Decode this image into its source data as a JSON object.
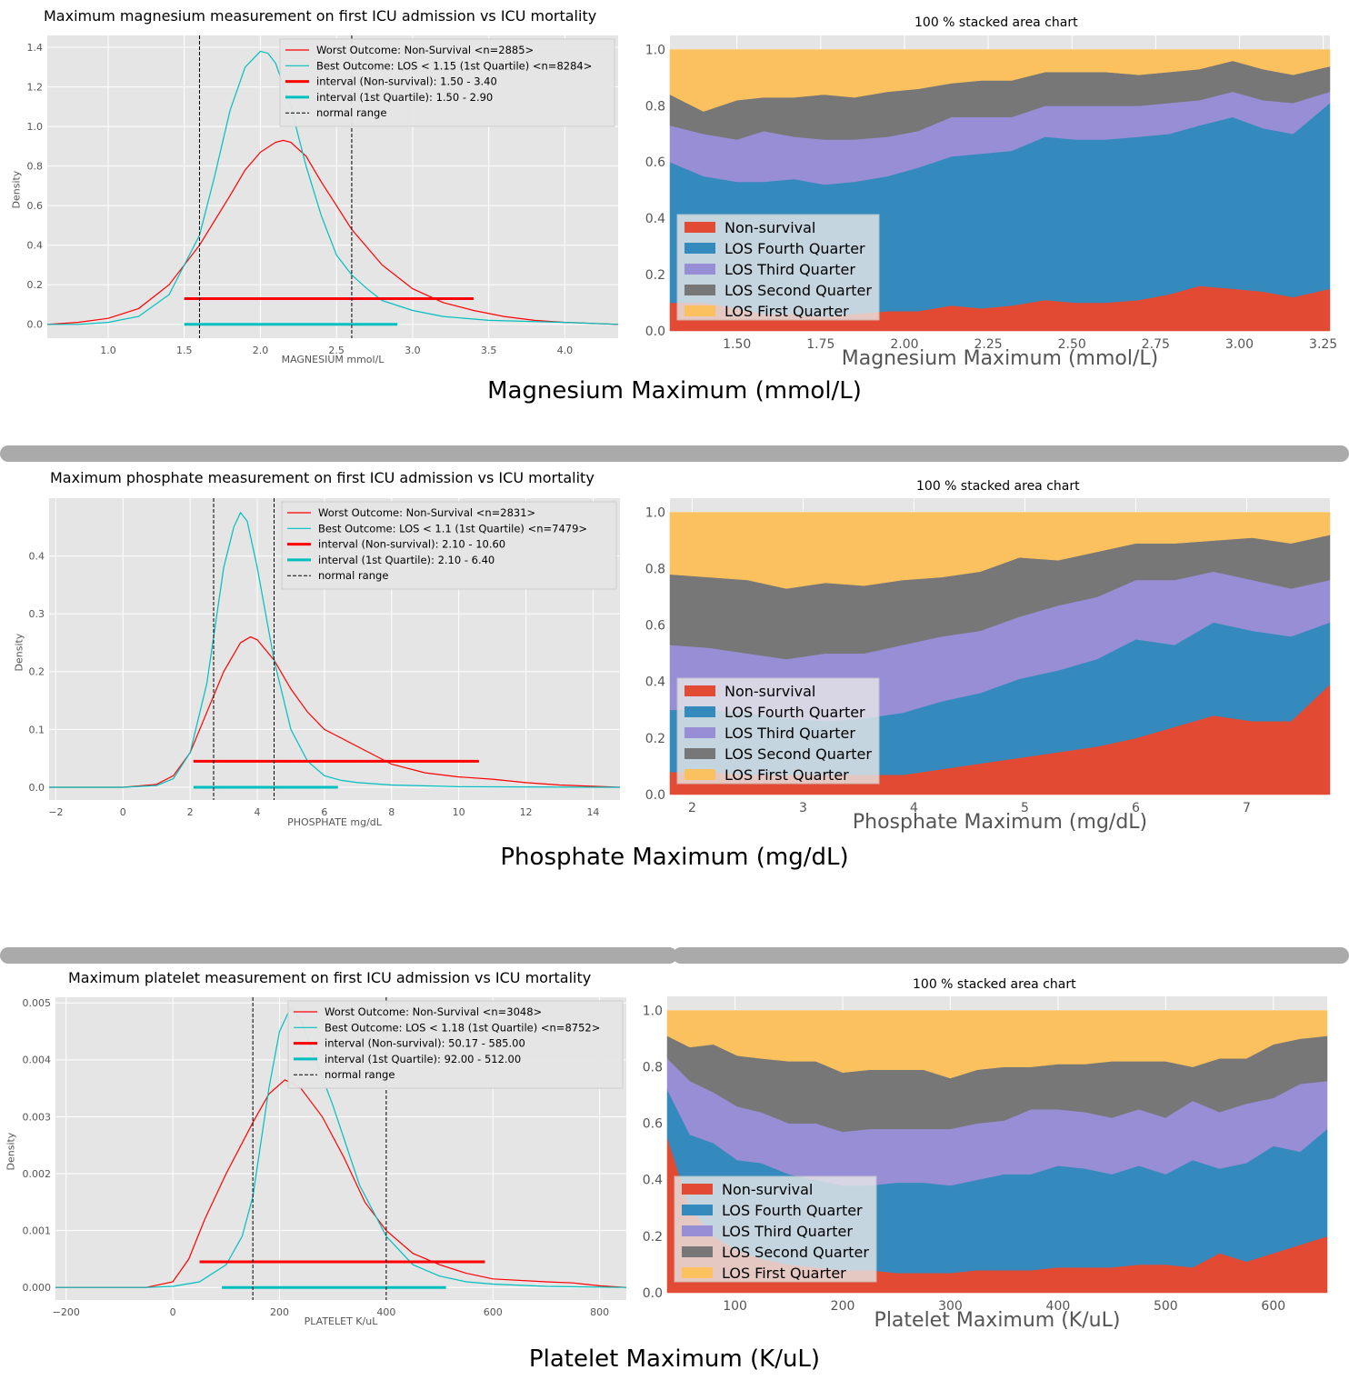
{
  "colors": {
    "red": "#e24a33",
    "blue": "#348abd",
    "purple": "#988ed5",
    "gray": "#777777",
    "yellow": "#fbc15e",
    "kde_red": "#ff0000",
    "kde_cyan": "#00bfbf",
    "panel_bg": "#e5e5e5",
    "grid": "#ffffff",
    "divider": "#aaaaaa"
  },
  "sections": {
    "magnesium": {
      "caption": "Magnesium Maximum (mmol/L)"
    },
    "phosphate": {
      "caption": "Phosphate Maximum (mg/dL)"
    },
    "platelet": {
      "caption": "Platelet Maximum (K/uL)"
    }
  },
  "chart_data": [
    {
      "id": "mg_kde",
      "type": "line",
      "title": "Maximum magnesium measurement on first ICU admission vs ICU mortality",
      "xlabel": "MAGNESIUM mmol/L",
      "ylabel": "Density",
      "xlim": [
        0.6,
        4.35
      ],
      "ylim": [
        -0.07,
        1.46
      ],
      "xticks": [
        1.0,
        1.5,
        2.0,
        2.5,
        3.0,
        3.5,
        4.0
      ],
      "xtick_labels": [
        "1.0",
        "1.5",
        "2.0",
        "2.5",
        "3.0",
        "3.5",
        "4.0"
      ],
      "yticks": [
        0.0,
        0.2,
        0.4,
        0.6,
        0.8,
        1.0,
        1.2,
        1.4
      ],
      "ytick_labels": [
        "0.0",
        "0.2",
        "0.4",
        "0.6",
        "0.8",
        "1.0",
        "1.2",
        "1.4"
      ],
      "legend": [
        "Worst Outcome: Non-Survival <n=2885>",
        "Best Outcome: LOS < 1.15 (1st Quartile) <n=8284>",
        "interval (Non-survival): 1.50 - 3.40",
        "interval (1st Quartile): 1.50 - 2.90",
        "normal range"
      ],
      "series": [
        {
          "name": "Worst Outcome: Non-Survival <n=2885>",
          "color": "red",
          "x": [
            0.6,
            0.8,
            1.0,
            1.2,
            1.4,
            1.6,
            1.8,
            1.9,
            2.0,
            2.1,
            2.15,
            2.2,
            2.3,
            2.4,
            2.5,
            2.6,
            2.8,
            3.0,
            3.2,
            3.4,
            3.6,
            3.8,
            4.0,
            4.35
          ],
          "y": [
            0.0,
            0.01,
            0.03,
            0.08,
            0.2,
            0.4,
            0.65,
            0.78,
            0.87,
            0.92,
            0.93,
            0.92,
            0.85,
            0.72,
            0.6,
            0.48,
            0.3,
            0.18,
            0.11,
            0.07,
            0.04,
            0.02,
            0.01,
            0.0
          ]
        },
        {
          "name": "Best Outcome: LOS < 1.15 (1st Quartile) <n=8284>",
          "color": "cyan",
          "x": [
            0.6,
            0.8,
            1.0,
            1.2,
            1.4,
            1.6,
            1.7,
            1.8,
            1.9,
            2.0,
            2.05,
            2.1,
            2.2,
            2.3,
            2.4,
            2.5,
            2.6,
            2.7,
            2.8,
            3.0,
            3.2,
            3.5,
            4.0,
            4.35
          ],
          "y": [
            0.0,
            0.0,
            0.01,
            0.04,
            0.15,
            0.45,
            0.75,
            1.08,
            1.3,
            1.38,
            1.37,
            1.32,
            1.1,
            0.8,
            0.55,
            0.35,
            0.25,
            0.18,
            0.12,
            0.07,
            0.04,
            0.02,
            0.01,
            0.0
          ]
        }
      ],
      "intervals": [
        {
          "color": "red",
          "x0": 1.5,
          "x1": 3.4,
          "y": 0.13
        },
        {
          "color": "cyan",
          "x0": 1.5,
          "x1": 2.9,
          "y": 0.0
        }
      ],
      "normal_range": [
        1.6,
        2.6
      ]
    },
    {
      "id": "mg_area",
      "type": "area",
      "title": "100 % stacked area chart",
      "xlabel": "Magnesium Maximum (mmol/L)",
      "xlim": [
        1.3,
        3.27
      ],
      "ylim": [
        0.0,
        1.05
      ],
      "xticks": [
        1.5,
        1.75,
        2.0,
        2.25,
        2.5,
        2.75,
        3.0,
        3.25
      ],
      "xtick_labels": [
        "1.50",
        "1.75",
        "2.00",
        "2.25",
        "2.50",
        "2.75",
        "3.00",
        "3.25"
      ],
      "yticks": [
        0.0,
        0.2,
        0.4,
        0.6,
        0.8,
        1.0
      ],
      "ytick_labels": [
        "0.0",
        "0.2",
        "0.4",
        "0.6",
        "0.8",
        "1.0"
      ],
      "legend": [
        "Non-survival",
        "LOS Fourth Quarter",
        "LOS Third Quarter",
        "LOS Second Quarter",
        "LOS First Quarter"
      ],
      "x": [
        1.3,
        1.4,
        1.5,
        1.58,
        1.67,
        1.76,
        1.85,
        1.95,
        2.04,
        2.14,
        2.23,
        2.32,
        2.42,
        2.51,
        2.6,
        2.7,
        2.79,
        2.88,
        2.98,
        3.07,
        3.16,
        3.27
      ],
      "cumulative": [
        [
          0.1,
          0.1,
          0.08,
          0.06,
          0.06,
          0.05,
          0.06,
          0.07,
          0.07,
          0.09,
          0.08,
          0.09,
          0.11,
          0.1,
          0.1,
          0.11,
          0.13,
          0.16,
          0.15,
          0.14,
          0.12,
          0.15
        ],
        [
          0.6,
          0.55,
          0.53,
          0.53,
          0.54,
          0.52,
          0.53,
          0.55,
          0.58,
          0.62,
          0.63,
          0.64,
          0.69,
          0.68,
          0.68,
          0.69,
          0.7,
          0.73,
          0.76,
          0.72,
          0.7,
          0.81
        ],
        [
          0.73,
          0.7,
          0.68,
          0.71,
          0.69,
          0.68,
          0.68,
          0.69,
          0.71,
          0.76,
          0.76,
          0.76,
          0.8,
          0.8,
          0.8,
          0.8,
          0.81,
          0.82,
          0.85,
          0.82,
          0.81,
          0.85
        ],
        [
          0.84,
          0.78,
          0.82,
          0.83,
          0.83,
          0.84,
          0.83,
          0.85,
          0.86,
          0.88,
          0.89,
          0.89,
          0.92,
          0.92,
          0.92,
          0.91,
          0.92,
          0.93,
          0.96,
          0.93,
          0.91,
          0.94
        ],
        [
          1.0,
          1.0,
          1.0,
          1.0,
          1.0,
          1.0,
          1.0,
          1.0,
          1.0,
          1.0,
          1.0,
          1.0,
          1.0,
          1.0,
          1.0,
          1.0,
          1.0,
          1.0,
          1.0,
          1.0,
          1.0,
          1.0
        ]
      ]
    },
    {
      "id": "ph_kde",
      "type": "line",
      "title": "Maximum phosphate measurement on first ICU admission vs ICU mortality",
      "xlabel": "PHOSPHATE mg/dL",
      "ylabel": "Density",
      "xlim": [
        -2.2,
        14.8
      ],
      "ylim": [
        -0.022,
        0.5
      ],
      "xticks": [
        -2,
        0,
        2,
        4,
        6,
        8,
        10,
        12,
        14
      ],
      "xtick_labels": [
        "−2",
        "0",
        "2",
        "4",
        "6",
        "8",
        "10",
        "12",
        "14"
      ],
      "yticks": [
        0.0,
        0.1,
        0.2,
        0.3,
        0.4
      ],
      "ytick_labels": [
        "0.0",
        "0.1",
        "0.2",
        "0.3",
        "0.4"
      ],
      "legend": [
        "Worst Outcome: Non-Survival <n=2831>",
        "Best Outcome: LOS < 1.1 (1st Quartile) <n=7479>",
        "interval (Non-survival): 2.10 - 10.60",
        "interval (1st Quartile): 2.10 - 6.40",
        "normal range"
      ],
      "series": [
        {
          "name": "Worst Outcome: Non-Survival <n=2831>",
          "color": "red",
          "x": [
            -2.2,
            0,
            1,
            1.5,
            2,
            2.5,
            3,
            3.5,
            3.8,
            4,
            4.5,
            5,
            5.5,
            6,
            6.5,
            7,
            8,
            9,
            10,
            11,
            12,
            13,
            14.8
          ],
          "y": [
            0.0,
            0.0,
            0.005,
            0.02,
            0.06,
            0.13,
            0.2,
            0.25,
            0.26,
            0.255,
            0.22,
            0.17,
            0.13,
            0.1,
            0.085,
            0.07,
            0.04,
            0.025,
            0.018,
            0.014,
            0.008,
            0.004,
            0.0
          ]
        },
        {
          "name": "Best Outcome: LOS < 1.1 (1st Quartile) <n=7479>",
          "color": "cyan",
          "x": [
            -2.2,
            0,
            1,
            1.5,
            2,
            2.5,
            3,
            3.3,
            3.5,
            3.7,
            4,
            4.5,
            5,
            5.5,
            6,
            6.5,
            7,
            8,
            10,
            14.8
          ],
          "y": [
            0.0,
            0.0,
            0.003,
            0.015,
            0.06,
            0.18,
            0.38,
            0.45,
            0.475,
            0.46,
            0.38,
            0.22,
            0.1,
            0.045,
            0.02,
            0.012,
            0.008,
            0.004,
            0.001,
            0.0
          ]
        }
      ],
      "intervals": [
        {
          "color": "red",
          "x0": 2.1,
          "x1": 10.6,
          "y": 0.045
        },
        {
          "color": "cyan",
          "x0": 2.1,
          "x1": 6.4,
          "y": 0.0
        }
      ],
      "normal_range": [
        2.7,
        4.5
      ]
    },
    {
      "id": "ph_area",
      "type": "area",
      "title": "100 % stacked area chart",
      "xlabel": "Phosphate Maximum (mg/dL)",
      "xlim": [
        1.8,
        7.75
      ],
      "ylim": [
        0.0,
        1.05
      ],
      "xticks": [
        2,
        3,
        4,
        5,
        6,
        7
      ],
      "xtick_labels": [
        "2",
        "3",
        "4",
        "5",
        "6",
        "7"
      ],
      "yticks": [
        0.0,
        0.2,
        0.4,
        0.6,
        0.8,
        1.0
      ],
      "ytick_labels": [
        "0.0",
        "0.2",
        "0.4",
        "0.6",
        "0.8",
        "1.0"
      ],
      "legend": [
        "Non-survival",
        "LOS Fourth Quarter",
        "LOS Third Quarter",
        "LOS Second Quarter",
        "LOS First Quarter"
      ],
      "x": [
        1.8,
        2.15,
        2.5,
        2.85,
        3.2,
        3.55,
        3.9,
        4.25,
        4.6,
        4.95,
        5.3,
        5.65,
        6.0,
        6.35,
        6.7,
        7.05,
        7.4,
        7.75
      ],
      "cumulative": [
        [
          0.08,
          0.08,
          0.07,
          0.07,
          0.07,
          0.07,
          0.07,
          0.09,
          0.11,
          0.13,
          0.15,
          0.17,
          0.2,
          0.24,
          0.28,
          0.26,
          0.26,
          0.39
        ],
        [
          0.3,
          0.3,
          0.29,
          0.27,
          0.26,
          0.27,
          0.29,
          0.33,
          0.36,
          0.41,
          0.44,
          0.48,
          0.55,
          0.53,
          0.61,
          0.58,
          0.56,
          0.61
        ],
        [
          0.53,
          0.52,
          0.5,
          0.48,
          0.5,
          0.5,
          0.53,
          0.56,
          0.58,
          0.63,
          0.67,
          0.7,
          0.76,
          0.76,
          0.79,
          0.76,
          0.73,
          0.76
        ],
        [
          0.78,
          0.77,
          0.76,
          0.73,
          0.75,
          0.74,
          0.76,
          0.77,
          0.79,
          0.84,
          0.83,
          0.86,
          0.89,
          0.89,
          0.9,
          0.91,
          0.89,
          0.92
        ],
        [
          1.0,
          1.0,
          1.0,
          1.0,
          1.0,
          1.0,
          1.0,
          1.0,
          1.0,
          1.0,
          1.0,
          1.0,
          1.0,
          1.0,
          1.0,
          1.0,
          1.0,
          1.0
        ]
      ]
    },
    {
      "id": "pl_kde",
      "type": "line",
      "title": "Maximum platelet measurement on first ICU admission vs ICU mortality",
      "xlabel": "PLATELET K/uL",
      "ylabel": "Density",
      "xlim": [
        -220,
        850
      ],
      "ylim": [
        -0.00022,
        0.0051
      ],
      "xticks": [
        -200,
        0,
        200,
        400,
        600,
        800
      ],
      "xtick_labels": [
        "−200",
        "0",
        "200",
        "400",
        "600",
        "800"
      ],
      "yticks": [
        0.0,
        0.001,
        0.002,
        0.003,
        0.004,
        0.005
      ],
      "ytick_labels": [
        "0.000",
        "0.001",
        "0.002",
        "0.003",
        "0.004",
        "0.005"
      ],
      "legend": [
        "Worst Outcome: Non-Survival <n=3048>",
        "Best Outcome: LOS < 1.18 (1st Quartile) <n=8752>",
        "interval (Non-survival): 50.17 - 585.00",
        "interval (1st Quartile): 92.00 - 512.00",
        "normal range"
      ],
      "series": [
        {
          "name": "Worst Outcome: Non-Survival <n=3048>",
          "color": "red",
          "x": [
            -220,
            -50,
            0,
            30,
            60,
            100,
            150,
            180,
            210,
            240,
            280,
            320,
            360,
            400,
            450,
            500,
            550,
            600,
            700,
            750,
            800,
            850
          ],
          "y": [
            0.0,
            0.0,
            0.0001,
            0.0005,
            0.0012,
            0.002,
            0.0029,
            0.0034,
            0.00365,
            0.0035,
            0.003,
            0.0023,
            0.0015,
            0.001,
            0.0006,
            0.0004,
            0.00025,
            0.00015,
            0.0001,
            8e-05,
            3e-05,
            0.0
          ]
        },
        {
          "name": "Best Outcome: LOS < 1.18 (1st Quartile) <n=8752>",
          "color": "cyan",
          "x": [
            -220,
            -50,
            0,
            50,
            100,
            130,
            150,
            180,
            200,
            220,
            240,
            260,
            300,
            350,
            400,
            450,
            500,
            550,
            600,
            700,
            850
          ],
          "y": [
            0.0,
            0.0,
            2e-05,
            0.0001,
            0.0004,
            0.0009,
            0.0016,
            0.0035,
            0.0045,
            0.0049,
            0.0047,
            0.0042,
            0.0032,
            0.0018,
            0.0009,
            0.0004,
            0.0002,
            0.0001,
            6e-05,
            2e-05,
            0.0
          ]
        }
      ],
      "intervals": [
        {
          "color": "red",
          "x0": 50.17,
          "x1": 585.0,
          "y": 0.00045
        },
        {
          "color": "cyan",
          "x0": 92.0,
          "x1": 512.0,
          "y": 0.0
        }
      ],
      "normal_range": [
        150,
        400
      ]
    },
    {
      "id": "pl_area",
      "type": "area",
      "title": "100 % stacked area chart",
      "xlabel": "Platelet Maximum (K/uL)",
      "xlim": [
        37,
        650
      ],
      "ylim": [
        0.0,
        1.05
      ],
      "xticks": [
        100,
        200,
        300,
        400,
        500,
        600
      ],
      "xtick_labels": [
        "100",
        "200",
        "300",
        "400",
        "500",
        "600"
      ],
      "yticks": [
        0.0,
        0.2,
        0.4,
        0.6,
        0.8,
        1.0
      ],
      "ytick_labels": [
        "0.0",
        "0.2",
        "0.4",
        "0.6",
        "0.8",
        "1.0"
      ],
      "legend": [
        "Non-survival",
        "LOS Fourth Quarter",
        "LOS Third Quarter",
        "LOS Second Quarter",
        "LOS First Quarter"
      ],
      "x": [
        37,
        58,
        80,
        102,
        124,
        150,
        175,
        200,
        225,
        250,
        275,
        300,
        325,
        350,
        375,
        400,
        425,
        450,
        475,
        500,
        525,
        550,
        575,
        600,
        625,
        650
      ],
      "cumulative": [
        [
          0.55,
          0.3,
          0.2,
          0.15,
          0.12,
          0.1,
          0.09,
          0.08,
          0.08,
          0.07,
          0.07,
          0.07,
          0.08,
          0.08,
          0.08,
          0.09,
          0.09,
          0.09,
          0.1,
          0.1,
          0.09,
          0.14,
          0.11,
          0.14,
          0.17,
          0.2
        ],
        [
          0.72,
          0.56,
          0.53,
          0.47,
          0.46,
          0.42,
          0.4,
          0.38,
          0.38,
          0.39,
          0.39,
          0.38,
          0.4,
          0.42,
          0.42,
          0.45,
          0.44,
          0.42,
          0.45,
          0.42,
          0.47,
          0.44,
          0.46,
          0.52,
          0.5,
          0.58
        ],
        [
          0.83,
          0.75,
          0.71,
          0.66,
          0.64,
          0.6,
          0.6,
          0.57,
          0.58,
          0.58,
          0.58,
          0.58,
          0.6,
          0.61,
          0.65,
          0.65,
          0.64,
          0.62,
          0.65,
          0.62,
          0.68,
          0.64,
          0.67,
          0.69,
          0.74,
          0.75
        ],
        [
          0.91,
          0.87,
          0.88,
          0.84,
          0.83,
          0.82,
          0.82,
          0.78,
          0.79,
          0.79,
          0.79,
          0.76,
          0.79,
          0.8,
          0.8,
          0.81,
          0.81,
          0.82,
          0.82,
          0.82,
          0.8,
          0.83,
          0.83,
          0.88,
          0.9,
          0.91
        ],
        [
          1.0,
          1.0,
          1.0,
          1.0,
          1.0,
          1.0,
          1.0,
          1.0,
          1.0,
          1.0,
          1.0,
          1.0,
          1.0,
          1.0,
          1.0,
          1.0,
          1.0,
          1.0,
          1.0,
          1.0,
          1.0,
          1.0,
          1.0,
          1.0,
          1.0,
          1.0
        ]
      ]
    }
  ]
}
